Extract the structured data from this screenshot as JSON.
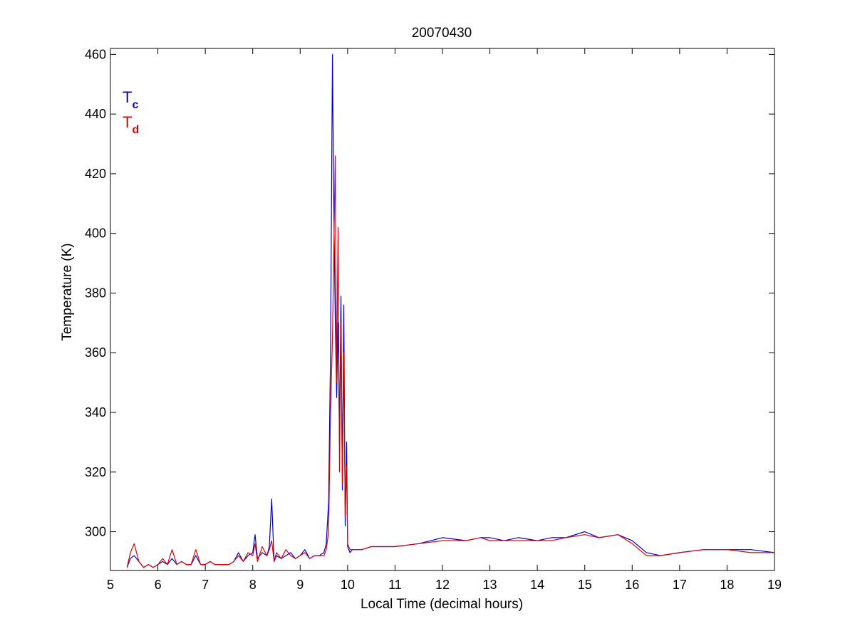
{
  "chart_data": {
    "type": "line",
    "title": "20070430",
    "xlabel": "Local Time (decimal hours)",
    "ylabel": "Temperature (K)",
    "xlim": [
      5,
      19
    ],
    "ylim": [
      287,
      462
    ],
    "xticks": [
      5,
      6,
      7,
      8,
      9,
      10,
      11,
      12,
      13,
      14,
      15,
      16,
      17,
      18,
      19
    ],
    "yticks": [
      300,
      320,
      340,
      360,
      380,
      400,
      420,
      440,
      460
    ],
    "grid": false,
    "box": true,
    "legend": {
      "placement": "top-left",
      "entries": [
        {
          "main": "T",
          "sub": "c",
          "color": "#0000cc"
        },
        {
          "main": "T",
          "sub": "d",
          "color": "#dd0000"
        }
      ]
    },
    "series": [
      {
        "color": "#0000cc",
        "x": [
          5.35,
          5.42,
          5.5,
          5.6,
          5.7,
          5.8,
          5.9,
          6.0,
          6.1,
          6.2,
          6.3,
          6.4,
          6.5,
          6.6,
          6.7,
          6.8,
          6.9,
          7.0,
          7.1,
          7.2,
          7.3,
          7.4,
          7.5,
          7.6,
          7.7,
          7.8,
          7.9,
          8.0,
          8.05,
          8.1,
          8.2,
          8.3,
          8.35,
          8.4,
          8.45,
          8.5,
          8.6,
          8.7,
          8.8,
          8.9,
          9.0,
          9.1,
          9.2,
          9.3,
          9.4,
          9.5,
          9.55,
          9.6,
          9.64,
          9.68,
          9.71,
          9.74,
          9.77,
          9.8,
          9.83,
          9.86,
          9.89,
          9.92,
          9.95,
          9.98,
          10.0,
          10.05,
          10.1,
          10.3,
          10.5,
          10.8,
          11.0,
          11.5,
          12.0,
          12.5,
          12.8,
          13.0,
          13.3,
          13.6,
          14.0,
          14.3,
          14.6,
          15.0,
          15.3,
          15.7,
          16.0,
          16.3,
          16.6,
          17.0,
          17.5,
          18.0,
          18.5,
          19.0
        ],
        "y": [
          288,
          291,
          292,
          290,
          288,
          289,
          288,
          289,
          290,
          289,
          291,
          289,
          290,
          289,
          289,
          292,
          289,
          289,
          290,
          289,
          289,
          289,
          289,
          290,
          293,
          290,
          292,
          293,
          299,
          291,
          293,
          292,
          295,
          311,
          290,
          292,
          291,
          292,
          293,
          291,
          292,
          294,
          291,
          292,
          292,
          293,
          296,
          310,
          360,
          460,
          407,
          372,
          345,
          370,
          330,
          379,
          314,
          376,
          302,
          330,
          295,
          293,
          294,
          294,
          295,
          295,
          295,
          296,
          298,
          297,
          298,
          298,
          297,
          298,
          297,
          298,
          298,
          300,
          298,
          299,
          297,
          293,
          292,
          293,
          294,
          294,
          294,
          293
        ]
      },
      {
        "color": "#dd0000",
        "x": [
          5.35,
          5.42,
          5.5,
          5.6,
          5.7,
          5.8,
          5.9,
          6.0,
          6.1,
          6.2,
          6.3,
          6.4,
          6.5,
          6.6,
          6.7,
          6.8,
          6.9,
          7.0,
          7.1,
          7.2,
          7.3,
          7.4,
          7.5,
          7.6,
          7.7,
          7.8,
          7.9,
          8.0,
          8.05,
          8.1,
          8.2,
          8.3,
          8.35,
          8.4,
          8.45,
          8.5,
          8.6,
          8.7,
          8.8,
          8.9,
          9.0,
          9.1,
          9.2,
          9.3,
          9.4,
          9.5,
          9.55,
          9.6,
          9.64,
          9.68,
          9.71,
          9.74,
          9.77,
          9.8,
          9.83,
          9.86,
          9.89,
          9.92,
          9.95,
          9.98,
          10.0,
          10.05,
          10.1,
          10.3,
          10.5,
          10.8,
          11.0,
          11.5,
          12.0,
          12.5,
          12.8,
          13.0,
          13.3,
          13.6,
          14.0,
          14.3,
          14.6,
          15.0,
          15.3,
          15.7,
          16.0,
          16.3,
          16.6,
          17.0,
          17.5,
          18.0,
          18.5,
          19.0
        ],
        "y": [
          288,
          293,
          296,
          290,
          288,
          289,
          288,
          289,
          291,
          289,
          294,
          289,
          290,
          289,
          289,
          294,
          289,
          289,
          290,
          289,
          289,
          289,
          289,
          290,
          292,
          290,
          293,
          292,
          296,
          290,
          295,
          292,
          294,
          297,
          290,
          293,
          291,
          294,
          292,
          291,
          292,
          293,
          291,
          292,
          292,
          292,
          294,
          300,
          340,
          365,
          395,
          426,
          350,
          402,
          320,
          370,
          316,
          360,
          305,
          322,
          296,
          294,
          294,
          294,
          295,
          295,
          295,
          296,
          297,
          297,
          298,
          297,
          297,
          297,
          297,
          297,
          298,
          299,
          298,
          299,
          296,
          292,
          292,
          293,
          294,
          294,
          293,
          293
        ]
      }
    ]
  }
}
